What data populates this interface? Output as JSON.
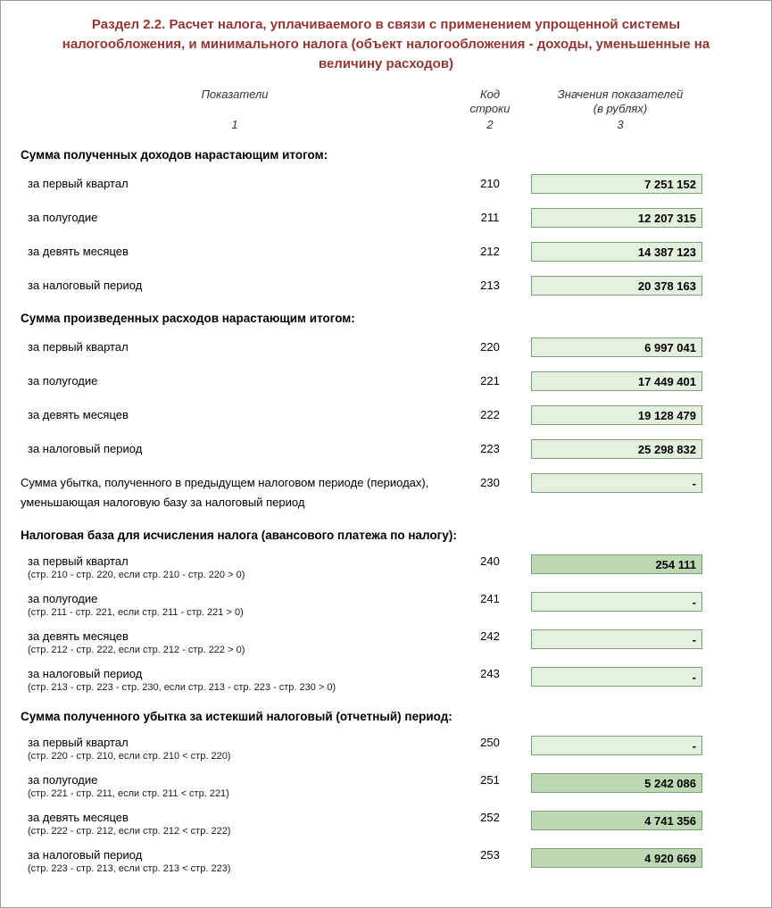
{
  "page": {
    "title": "Раздел 2.2. Расчет налога, уплачиваемого в связи с применением упрощенной системы налогообложения, и минимального налога (объект налогообложения - доходы, уменьшенные на величину расходов)"
  },
  "columns": {
    "indicators": {
      "label": "Показатели",
      "num": "1"
    },
    "code": {
      "label": "Код\nстроки",
      "num": "2"
    },
    "values": {
      "label": "Значения показателей\n(в рублях)",
      "num": "3"
    }
  },
  "colors": {
    "title": "#943634",
    "box_light": "#e2f0dd",
    "box_filled": "#bdd9b3",
    "box_border": "#7d9c78"
  },
  "sections": [
    {
      "header": "Сумма полученных доходов нарастающим итогом:",
      "rows": [
        {
          "label": "за первый квартал",
          "note": "",
          "code": "210",
          "value": "7 251 152",
          "highlight": false
        },
        {
          "label": "за полугодие",
          "note": "",
          "code": "211",
          "value": "12 207 315",
          "highlight": false
        },
        {
          "label": "за девять месяцев",
          "note": "",
          "code": "212",
          "value": "14 387 123",
          "highlight": false
        },
        {
          "label": "за налоговый период",
          "note": "",
          "code": "213",
          "value": "20 378 163",
          "highlight": false
        }
      ]
    },
    {
      "header": "Сумма произведенных расходов нарастающим итогом:",
      "rows": [
        {
          "label": "за первый квартал",
          "note": "",
          "code": "220",
          "value": "6 997 041",
          "highlight": false
        },
        {
          "label": "за полугодие",
          "note": "",
          "code": "221",
          "value": "17 449 401",
          "highlight": false
        },
        {
          "label": "за девять месяцев",
          "note": "",
          "code": "222",
          "value": "19 128 479",
          "highlight": false
        },
        {
          "label": "за налоговый период",
          "note": "",
          "code": "223",
          "value": "25 298 832",
          "highlight": false
        }
      ]
    },
    {
      "header": "",
      "rows": [
        {
          "label": "Сумма убытка, полученного в предыдущем налоговом периоде (периодах), уменьшающая налоговую базу за налоговый период",
          "note": "",
          "code": "230",
          "value": "-",
          "highlight": false
        }
      ]
    },
    {
      "header": "Налоговая база для исчисления налога (авансового платежа по налогу):",
      "rows": [
        {
          "label": "за первый квартал",
          "note": "(стр. 210 - стр. 220, если стр. 210 - стр. 220 > 0)",
          "code": "240",
          "value": "254 111",
          "highlight": true
        },
        {
          "label": "за полугодие",
          "note": "(стр. 211 - стр. 221, если стр. 211 - стр. 221 > 0)",
          "code": "241",
          "value": "-",
          "highlight": false
        },
        {
          "label": "за девять месяцев",
          "note": "(стр. 212 - стр. 222, если стр. 212 - стр. 222 > 0)",
          "code": "242",
          "value": "-",
          "highlight": false
        },
        {
          "label": "за налоговый период",
          "note": "(стр. 213 - стр. 223 - стр. 230, если стр. 213 - стр. 223 - стр. 230 > 0)",
          "code": "243",
          "value": "-",
          "highlight": false
        }
      ]
    },
    {
      "header": "Сумма полученного убытка за истекший налоговый (отчетный) период:",
      "rows": [
        {
          "label": "за первый квартал",
          "note": "(стр. 220 - стр. 210, если стр. 210 < стр. 220)",
          "code": "250",
          "value": "-",
          "highlight": false
        },
        {
          "label": "за полугодие",
          "note": "(стр. 221 - стр. 211, если стр. 211 < стр. 221)",
          "code": "251",
          "value": "5 242 086",
          "highlight": true
        },
        {
          "label": "за девять месяцев",
          "note": "(стр. 222 - стр. 212, если стр. 212 < стр. 222)",
          "code": "252",
          "value": "4 741 356",
          "highlight": true
        },
        {
          "label": "за налоговый период",
          "note": "(стр. 223 - стр. 213, если стр. 213 < стр. 223)",
          "code": "253",
          "value": "4 920 669",
          "highlight": true
        }
      ]
    }
  ]
}
